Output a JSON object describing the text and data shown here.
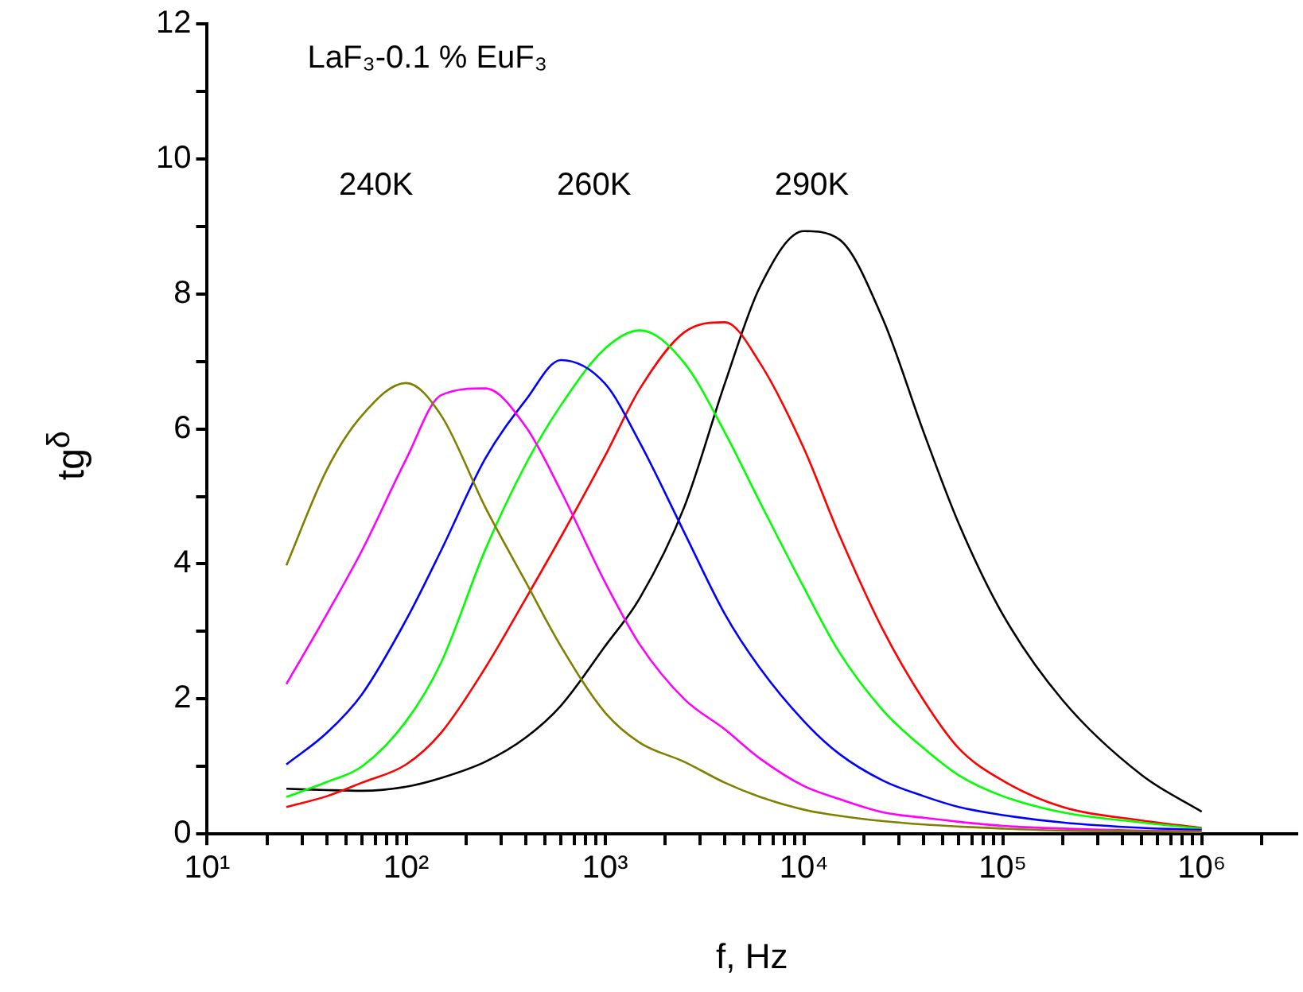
{
  "chart_data": {
    "type": "line",
    "title": "LaF₃-0.1 % EuF₃",
    "xlabel": "f, Hz",
    "ylabel": "tg$^{δ}$",
    "log": "x",
    "grid": false,
    "legend": false,
    "marker": "none",
    "line_style": "solid",
    "x": [
      25,
      40,
      60,
      100,
      150,
      250,
      400,
      600,
      1000,
      1500,
      2500,
      4000,
      6000,
      10000,
      15000,
      25000,
      40000,
      60000,
      100000,
      200000,
      500000,
      1000000
    ],
    "xlim": [
      10,
      3000000
    ],
    "xticks": [
      {
        "value": 10,
        "label": "10¹"
      },
      {
        "value": 20,
        "label": null
      },
      {
        "value": 30,
        "label": null
      },
      {
        "value": 40,
        "label": null
      },
      {
        "value": 50,
        "label": null
      },
      {
        "value": 60,
        "label": null
      },
      {
        "value": 70,
        "label": null
      },
      {
        "value": 80,
        "label": null
      },
      {
        "value": 90,
        "label": null
      },
      {
        "value": 100,
        "label": "10²"
      },
      {
        "value": 200,
        "label": null
      },
      {
        "value": 300,
        "label": null
      },
      {
        "value": 400,
        "label": null
      },
      {
        "value": 500,
        "label": null
      },
      {
        "value": 600,
        "label": null
      },
      {
        "value": 700,
        "label": null
      },
      {
        "value": 800,
        "label": null
      },
      {
        "value": 900,
        "label": null
      },
      {
        "value": 1000,
        "label": "10³"
      },
      {
        "value": 2000,
        "label": null
      },
      {
        "value": 3000,
        "label": null
      },
      {
        "value": 4000,
        "label": null
      },
      {
        "value": 5000,
        "label": null
      },
      {
        "value": 6000,
        "label": null
      },
      {
        "value": 7000,
        "label": null
      },
      {
        "value": 8000,
        "label": null
      },
      {
        "value": 9000,
        "label": null
      },
      {
        "value": 10000,
        "label": "10⁴"
      },
      {
        "value": 20000,
        "label": null
      },
      {
        "value": 30000,
        "label": null
      },
      {
        "value": 40000,
        "label": null
      },
      {
        "value": 50000,
        "label": null
      },
      {
        "value": 60000,
        "label": null
      },
      {
        "value": 70000,
        "label": null
      },
      {
        "value": 80000,
        "label": null
      },
      {
        "value": 90000,
        "label": null
      },
      {
        "value": 100000,
        "label": "10⁵"
      },
      {
        "value": 200000,
        "label": null
      },
      {
        "value": 300000,
        "label": null
      },
      {
        "value": 400000,
        "label": null
      },
      {
        "value": 500000,
        "label": null
      },
      {
        "value": 600000,
        "label": null
      },
      {
        "value": 700000,
        "label": null
      },
      {
        "value": 800000,
        "label": null
      },
      {
        "value": 900000,
        "label": null
      },
      {
        "value": 1000000,
        "label": "10⁶"
      },
      {
        "value": 2000000,
        "label": null
      }
    ],
    "ylim": [
      0,
      12
    ],
    "yticks": [
      0,
      {
        "value": 1,
        "label": null
      },
      2,
      {
        "value": 3,
        "label": null
      },
      4,
      {
        "value": 5,
        "label": null
      },
      6,
      {
        "value": 7,
        "label": null
      },
      8,
      {
        "value": 9,
        "label": null
      },
      10,
      {
        "value": 11,
        "label": null
      },
      12
    ],
    "annotations": [
      "240K",
      "260K",
      "290K"
    ],
    "series": [
      {
        "color": "#808000",
        "values": [
          3.98,
          5.4,
          6.2,
          6.68,
          6.2,
          4.84,
          3.73,
          2.78,
          1.8,
          1.35,
          1.07,
          0.76,
          0.55,
          0.36,
          0.27,
          0.19,
          0.14,
          0.11,
          0.08,
          0.05,
          0.04,
          0.03
        ]
      },
      {
        "color": "#ff00ff",
        "values": [
          2.22,
          3.26,
          4.2,
          5.55,
          6.5,
          6.6,
          6.03,
          5.08,
          3.73,
          2.8,
          2.0,
          1.55,
          1.12,
          0.71,
          0.52,
          0.32,
          0.24,
          0.18,
          0.12,
          0.08,
          0.05,
          0.04
        ]
      },
      {
        "color": "#0000ff",
        "values": [
          1.03,
          1.5,
          2.07,
          3.17,
          4.2,
          5.56,
          6.43,
          7.02,
          6.67,
          5.79,
          4.47,
          3.26,
          2.46,
          1.67,
          1.19,
          0.79,
          0.56,
          0.4,
          0.28,
          0.17,
          0.09,
          0.06
        ]
      },
      {
        "color": "#00ff00",
        "values": [
          0.55,
          0.77,
          1.0,
          1.67,
          2.54,
          4.21,
          5.48,
          6.35,
          7.19,
          7.46,
          6.98,
          5.95,
          4.92,
          3.65,
          2.7,
          1.83,
          1.27,
          0.87,
          0.56,
          0.32,
          0.17,
          0.08
        ]
      },
      {
        "color": "#ff0000",
        "values": [
          0.4,
          0.56,
          0.76,
          1.03,
          1.5,
          2.46,
          3.49,
          4.4,
          5.6,
          6.6,
          7.43,
          7.58,
          6.98,
          5.71,
          4.44,
          3.02,
          1.98,
          1.27,
          0.79,
          0.4,
          0.2,
          0.09
        ]
      },
      {
        "color": "#000000",
        "values": [
          0.67,
          0.65,
          0.64,
          0.7,
          0.83,
          1.07,
          1.43,
          1.9,
          2.78,
          3.5,
          4.84,
          6.67,
          8.1,
          8.93,
          8.81,
          7.62,
          5.95,
          4.6,
          3.25,
          1.98,
          0.87,
          0.33
        ]
      }
    ]
  }
}
